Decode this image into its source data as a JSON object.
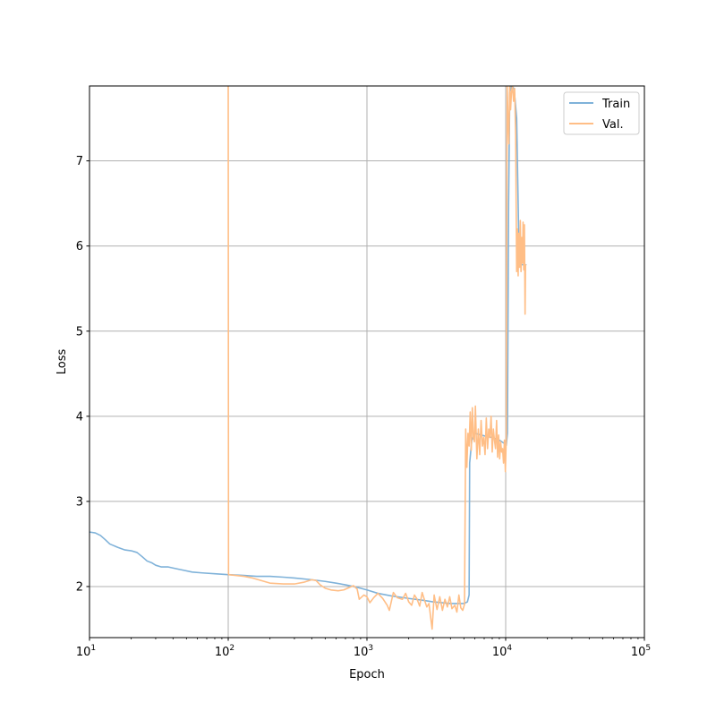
{
  "chart_data": {
    "type": "line",
    "title": "",
    "xlabel": "Epoch",
    "ylabel": "Loss",
    "xscale": "log",
    "xlim": [
      10,
      100000
    ],
    "ylim": [
      1.4,
      7.88
    ],
    "grid": true,
    "legend_position": "upper-right",
    "x_ticks": [
      {
        "value": 10,
        "base": "10",
        "exp": "1"
      },
      {
        "value": 100,
        "base": "10",
        "exp": "2"
      },
      {
        "value": 1000,
        "base": "10",
        "exp": "3"
      },
      {
        "value": 10000,
        "base": "10",
        "exp": "4"
      },
      {
        "value": 100000,
        "base": "10",
        "exp": "5"
      }
    ],
    "y_ticks": [
      {
        "value": 2,
        "label": "2"
      },
      {
        "value": 3,
        "label": "3"
      },
      {
        "value": 4,
        "label": "4"
      },
      {
        "value": 5,
        "label": "5"
      },
      {
        "value": 6,
        "label": "6"
      },
      {
        "value": 7,
        "label": "7"
      }
    ],
    "series": [
      {
        "name": "Train",
        "color": "#7fb2d9",
        "points": [
          [
            10,
            2.64
          ],
          [
            11,
            2.63
          ],
          [
            12,
            2.6
          ],
          [
            13,
            2.55
          ],
          [
            14,
            2.5
          ],
          [
            16,
            2.46
          ],
          [
            18,
            2.43
          ],
          [
            20,
            2.42
          ],
          [
            22,
            2.4
          ],
          [
            24,
            2.35
          ],
          [
            26,
            2.3
          ],
          [
            28,
            2.28
          ],
          [
            30,
            2.25
          ],
          [
            33,
            2.23
          ],
          [
            37,
            2.23
          ],
          [
            42,
            2.21
          ],
          [
            48,
            2.19
          ],
          [
            55,
            2.17
          ],
          [
            65,
            2.16
          ],
          [
            80,
            2.15
          ],
          [
            100,
            2.14
          ],
          [
            130,
            2.13
          ],
          [
            160,
            2.12
          ],
          [
            200,
            2.12
          ],
          [
            250,
            2.11
          ],
          [
            300,
            2.1
          ],
          [
            400,
            2.08
          ],
          [
            500,
            2.06
          ],
          [
            600,
            2.04
          ],
          [
            700,
            2.02
          ],
          [
            800,
            2.0
          ],
          [
            900,
            1.98
          ],
          [
            1000,
            1.96
          ],
          [
            1200,
            1.92
          ],
          [
            1500,
            1.89
          ],
          [
            2000,
            1.86
          ],
          [
            2500,
            1.84
          ],
          [
            3000,
            1.82
          ],
          [
            3500,
            1.81
          ],
          [
            4000,
            1.8
          ],
          [
            4500,
            1.8
          ],
          [
            5000,
            1.8
          ],
          [
            5300,
            1.82
          ],
          [
            5450,
            1.9
          ],
          [
            5500,
            3.45
          ],
          [
            5700,
            3.72
          ],
          [
            6000,
            3.8
          ],
          [
            7000,
            3.77
          ],
          [
            8000,
            3.75
          ],
          [
            9000,
            3.72
          ],
          [
            9800,
            3.68
          ],
          [
            10100,
            3.66
          ],
          [
            10300,
            3.8
          ],
          [
            10500,
            6.5
          ],
          [
            10700,
            7.8
          ],
          [
            11000,
            7.88
          ],
          [
            11500,
            7.85
          ],
          [
            12000,
            7.5
          ],
          [
            12300,
            6.5
          ],
          [
            12500,
            5.85
          ],
          [
            13000,
            5.78
          ],
          [
            13500,
            5.78
          ],
          [
            14000,
            5.78
          ]
        ]
      },
      {
        "name": "Val.",
        "color": "#ffbe86",
        "points": [
          [
            100,
            7.88
          ],
          [
            100.5,
            2.14
          ],
          [
            130,
            2.12
          ],
          [
            150,
            2.1
          ],
          [
            200,
            2.04
          ],
          [
            250,
            2.03
          ],
          [
            300,
            2.03
          ],
          [
            350,
            2.05
          ],
          [
            400,
            2.08
          ],
          [
            430,
            2.07
          ],
          [
            460,
            2.02
          ],
          [
            500,
            1.98
          ],
          [
            550,
            1.96
          ],
          [
            620,
            1.95
          ],
          [
            680,
            1.96
          ],
          [
            750,
            1.99
          ],
          [
            800,
            2.01
          ],
          [
            850,
            1.97
          ],
          [
            880,
            1.85
          ],
          [
            950,
            1.9
          ],
          [
            1000,
            1.88
          ],
          [
            1050,
            1.81
          ],
          [
            1120,
            1.87
          ],
          [
            1200,
            1.92
          ],
          [
            1300,
            1.86
          ],
          [
            1400,
            1.78
          ],
          [
            1450,
            1.72
          ],
          [
            1550,
            1.93
          ],
          [
            1650,
            1.87
          ],
          [
            1800,
            1.85
          ],
          [
            1900,
            1.92
          ],
          [
            2000,
            1.82
          ],
          [
            2100,
            1.78
          ],
          [
            2200,
            1.9
          ],
          [
            2300,
            1.85
          ],
          [
            2400,
            1.77
          ],
          [
            2500,
            1.93
          ],
          [
            2600,
            1.84
          ],
          [
            2700,
            1.76
          ],
          [
            2800,
            1.8
          ],
          [
            2950,
            1.5
          ],
          [
            3050,
            1.9
          ],
          [
            3200,
            1.73
          ],
          [
            3350,
            1.88
          ],
          [
            3500,
            1.72
          ],
          [
            3650,
            1.85
          ],
          [
            3800,
            1.76
          ],
          [
            3950,
            1.88
          ],
          [
            4100,
            1.74
          ],
          [
            4300,
            1.78
          ],
          [
            4450,
            1.7
          ],
          [
            4600,
            1.9
          ],
          [
            4750,
            1.75
          ],
          [
            4900,
            1.72
          ],
          [
            5050,
            1.79
          ],
          [
            5150,
            3.85
          ],
          [
            5250,
            3.4
          ],
          [
            5350,
            3.8
          ],
          [
            5450,
            3.65
          ],
          [
            5550,
            4.05
          ],
          [
            5650,
            3.6
          ],
          [
            5750,
            4.1
          ],
          [
            5850,
            3.75
          ],
          [
            5950,
            3.7
          ],
          [
            6050,
            4.12
          ],
          [
            6200,
            3.5
          ],
          [
            6350,
            3.85
          ],
          [
            6500,
            3.55
          ],
          [
            6650,
            3.95
          ],
          [
            6800,
            3.65
          ],
          [
            6950,
            3.75
          ],
          [
            7100,
            3.55
          ],
          [
            7250,
            3.98
          ],
          [
            7400,
            3.62
          ],
          [
            7550,
            3.85
          ],
          [
            7700,
            3.75
          ],
          [
            7850,
            4.0
          ],
          [
            8000,
            3.58
          ],
          [
            8150,
            3.85
          ],
          [
            8300,
            3.72
          ],
          [
            8450,
            3.62
          ],
          [
            8600,
            3.95
          ],
          [
            8750,
            3.52
          ],
          [
            8900,
            3.78
          ],
          [
            9050,
            3.5
          ],
          [
            9200,
            3.7
          ],
          [
            9350,
            3.58
          ],
          [
            9500,
            3.62
          ],
          [
            9650,
            3.45
          ],
          [
            9800,
            3.72
          ],
          [
            9950,
            3.35
          ],
          [
            10100,
            3.75
          ],
          [
            10250,
            7.88
          ],
          [
            10400,
            7.5
          ],
          [
            10550,
            7.2
          ],
          [
            10700,
            7.88
          ],
          [
            10850,
            7.6
          ],
          [
            11000,
            7.8
          ],
          [
            11200,
            7.88
          ],
          [
            11400,
            7.7
          ],
          [
            11600,
            7.85
          ],
          [
            11800,
            7.3
          ],
          [
            12000,
            5.7
          ],
          [
            12150,
            6.2
          ],
          [
            12300,
            5.65
          ],
          [
            12450,
            6.15
          ],
          [
            12600,
            5.75
          ],
          [
            12750,
            6.3
          ],
          [
            12900,
            5.7
          ],
          [
            13050,
            6.1
          ],
          [
            13200,
            5.8
          ],
          [
            13350,
            6.28
          ],
          [
            13500,
            5.72
          ],
          [
            13650,
            6.25
          ],
          [
            13800,
            5.2
          ],
          [
            13900,
            5.78
          ]
        ]
      }
    ]
  }
}
